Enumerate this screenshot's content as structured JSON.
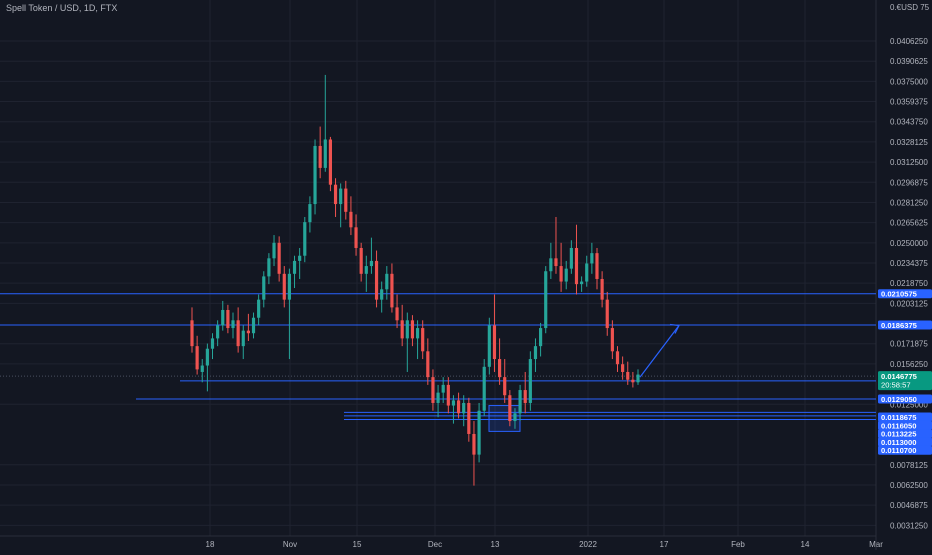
{
  "header": {
    "symbol_title": "Spell Token / USD, 1D, FTX"
  },
  "colors": {
    "background": "#131722",
    "grid": "#1f2330",
    "up": "#26a69a",
    "down": "#ef5350",
    "level": "#2962ff",
    "axis_text": "#b2b5be",
    "current_badge": "#089981"
  },
  "chart_data": {
    "type": "candlestick",
    "title": "Spell Token / USD, 1D, FTX",
    "x_tick_labels": [
      "18",
      "Nov",
      "15",
      "Dec",
      "13",
      "2022",
      "17",
      "Feb",
      "14",
      "Mar"
    ],
    "y_tick_labels": [
      "0.0406250",
      "0.0390625",
      "0.0375000",
      "0.0359375",
      "0.0343750",
      "0.0328125",
      "0.0312500",
      "0.0296875",
      "0.0281250",
      "0.0265625",
      "0.0250000",
      "0.0234375",
      "0.0218750",
      "0.0203125",
      "0.0171875",
      "0.0156250",
      "0.0125000",
      "0.0078125",
      "0.0062500",
      "0.0046875",
      "0.0031250"
    ],
    "y_top_label": "0.€USD 75",
    "ylim": [
      0.0023,
      0.0438
    ],
    "grid": true,
    "price_labels": [
      {
        "text": "0.0210575",
        "value": 0.0210575
      },
      {
        "text": "0.0186375",
        "value": 0.0186375
      },
      {
        "text": "0.0143125",
        "value": 0.0143125
      },
      {
        "text": "0.0129050",
        "value": 0.012905
      },
      {
        "text": "0.0118675",
        "value": 0.0118675
      },
      {
        "text": "0.0116050",
        "value": 0.011605
      },
      {
        "text": "0.0113225",
        "value": 0.0113225
      },
      {
        "text": "0.0113000",
        "value": 0.0113
      },
      {
        "text": "0.0110700",
        "value": 0.01107
      }
    ],
    "current_price": {
      "text": "0.0146775",
      "value": 0.0146775,
      "countdown": "20:58:57"
    },
    "horizontal_levels": [
      0.0210575,
      0.0186375,
      0.0143125,
      0.012905,
      0.0118675,
      0.011605,
      0.0113225
    ],
    "dotted_level": 0.0146775,
    "highlight_box": {
      "price_top": 0.0124,
      "price_bottom": 0.0104
    },
    "projection_arrow": {
      "from": 0.0146,
      "to": 0.0186
    },
    "candles": [
      [
        0.019,
        0.02,
        0.0165,
        0.017
      ],
      [
        0.017,
        0.0178,
        0.0148,
        0.0152
      ],
      [
        0.015,
        0.016,
        0.0142,
        0.0155
      ],
      [
        0.0155,
        0.0172,
        0.0135,
        0.0168
      ],
      [
        0.0168,
        0.018,
        0.016,
        0.0176
      ],
      [
        0.0176,
        0.019,
        0.017,
        0.0186
      ],
      [
        0.0186,
        0.0205,
        0.0182,
        0.0198
      ],
      [
        0.0198,
        0.0202,
        0.018,
        0.0184
      ],
      [
        0.0184,
        0.0196,
        0.0176,
        0.019
      ],
      [
        0.019,
        0.02,
        0.0165,
        0.017
      ],
      [
        0.017,
        0.0186,
        0.016,
        0.0182
      ],
      [
        0.0182,
        0.0195,
        0.0174,
        0.018
      ],
      [
        0.018,
        0.0196,
        0.0176,
        0.0192
      ],
      [
        0.0192,
        0.021,
        0.0186,
        0.0206
      ],
      [
        0.0206,
        0.0228,
        0.02,
        0.0224
      ],
      [
        0.0224,
        0.0242,
        0.0218,
        0.0238
      ],
      [
        0.0238,
        0.0256,
        0.0232,
        0.025
      ],
      [
        0.025,
        0.0255,
        0.022,
        0.0226
      ],
      [
        0.0226,
        0.0232,
        0.02,
        0.0206
      ],
      [
        0.0206,
        0.023,
        0.016,
        0.0226
      ],
      [
        0.0226,
        0.024,
        0.0215,
        0.0236
      ],
      [
        0.0236,
        0.0246,
        0.0222,
        0.024
      ],
      [
        0.024,
        0.027,
        0.0235,
        0.0266
      ],
      [
        0.0266,
        0.0286,
        0.0258,
        0.028
      ],
      [
        0.028,
        0.033,
        0.0272,
        0.0325
      ],
      [
        0.0325,
        0.034,
        0.03,
        0.0308
      ],
      [
        0.0308,
        0.038,
        0.0305,
        0.033
      ],
      [
        0.033,
        0.0332,
        0.029,
        0.0295
      ],
      [
        0.0295,
        0.03,
        0.027,
        0.028
      ],
      [
        0.028,
        0.0296,
        0.0262,
        0.0292
      ],
      [
        0.0292,
        0.0298,
        0.0268,
        0.0274
      ],
      [
        0.0274,
        0.0286,
        0.0256,
        0.0262
      ],
      [
        0.0262,
        0.0272,
        0.024,
        0.0246
      ],
      [
        0.0246,
        0.025,
        0.022,
        0.0226
      ],
      [
        0.0226,
        0.024,
        0.0212,
        0.0232
      ],
      [
        0.0232,
        0.0254,
        0.0226,
        0.0236
      ],
      [
        0.0236,
        0.0244,
        0.02,
        0.0206
      ],
      [
        0.0206,
        0.022,
        0.0196,
        0.0214
      ],
      [
        0.0214,
        0.0232,
        0.0206,
        0.0226
      ],
      [
        0.0226,
        0.0234,
        0.0196,
        0.02
      ],
      [
        0.02,
        0.021,
        0.0184,
        0.019
      ],
      [
        0.019,
        0.0202,
        0.017,
        0.0176
      ],
      [
        0.0176,
        0.0196,
        0.015,
        0.019
      ],
      [
        0.019,
        0.0194,
        0.017,
        0.0176
      ],
      [
        0.0176,
        0.019,
        0.016,
        0.0184
      ],
      [
        0.0184,
        0.019,
        0.016,
        0.0166
      ],
      [
        0.0166,
        0.0176,
        0.014,
        0.0146
      ],
      [
        0.0146,
        0.0152,
        0.012,
        0.0126
      ],
      [
        0.0126,
        0.014,
        0.0115,
        0.0134
      ],
      [
        0.0134,
        0.0146,
        0.0126,
        0.014
      ],
      [
        0.014,
        0.0146,
        0.0118,
        0.0124
      ],
      [
        0.0124,
        0.0132,
        0.011,
        0.0128
      ],
      [
        0.0128,
        0.0134,
        0.0114,
        0.0118
      ],
      [
        0.0118,
        0.0132,
        0.0108,
        0.0126
      ],
      [
        0.0126,
        0.013,
        0.0096,
        0.0102
      ],
      [
        0.0102,
        0.0112,
        0.0062,
        0.0086
      ],
      [
        0.0086,
        0.0126,
        0.008,
        0.012
      ],
      [
        0.012,
        0.016,
        0.0116,
        0.0154
      ],
      [
        0.0154,
        0.0192,
        0.0148,
        0.0186
      ],
      [
        0.0186,
        0.021,
        0.015,
        0.016
      ],
      [
        0.016,
        0.0176,
        0.014,
        0.0146
      ],
      [
        0.0146,
        0.016,
        0.0126,
        0.0132
      ],
      [
        0.0132,
        0.0136,
        0.0108,
        0.0112
      ],
      [
        0.0112,
        0.0122,
        0.0106,
        0.0118
      ],
      [
        0.0118,
        0.014,
        0.0112,
        0.0136
      ],
      [
        0.0136,
        0.015,
        0.0118,
        0.0126
      ],
      [
        0.0126,
        0.0166,
        0.012,
        0.016
      ],
      [
        0.016,
        0.0176,
        0.015,
        0.017
      ],
      [
        0.017,
        0.0188,
        0.0162,
        0.0184
      ],
      [
        0.0184,
        0.0232,
        0.018,
        0.0228
      ],
      [
        0.0228,
        0.025,
        0.0222,
        0.0238
      ],
      [
        0.0238,
        0.027,
        0.0226,
        0.0232
      ],
      [
        0.0232,
        0.025,
        0.0212,
        0.022
      ],
      [
        0.022,
        0.0236,
        0.0214,
        0.023
      ],
      [
        0.023,
        0.0252,
        0.0226,
        0.0246
      ],
      [
        0.0246,
        0.0264,
        0.021,
        0.0218
      ],
      [
        0.0218,
        0.0224,
        0.0212,
        0.022
      ],
      [
        0.022,
        0.024,
        0.0216,
        0.0234
      ],
      [
        0.0234,
        0.025,
        0.0226,
        0.0242
      ],
      [
        0.0242,
        0.0246,
        0.0214,
        0.0222
      ],
      [
        0.0222,
        0.0228,
        0.02,
        0.0206
      ],
      [
        0.0206,
        0.0212,
        0.0178,
        0.0184
      ],
      [
        0.0184,
        0.019,
        0.016,
        0.0166
      ],
      [
        0.0166,
        0.017,
        0.015,
        0.0156
      ],
      [
        0.0156,
        0.0162,
        0.0144,
        0.015
      ],
      [
        0.015,
        0.0158,
        0.014,
        0.0144
      ],
      [
        0.0144,
        0.015,
        0.0138,
        0.0142
      ],
      [
        0.0142,
        0.0152,
        0.014,
        0.0148
      ]
    ]
  }
}
